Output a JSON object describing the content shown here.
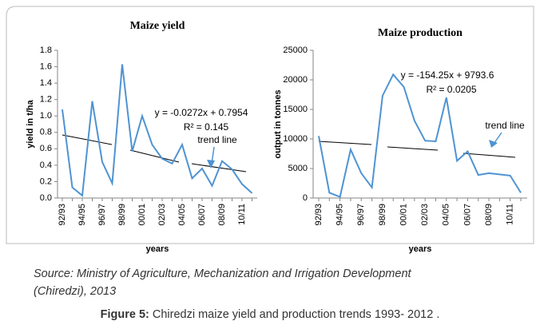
{
  "chart_data": [
    {
      "type": "line",
      "title": "Maize yield",
      "y_label": "yield in t/ha",
      "x_label": "years",
      "categories": [
        "92/93",
        null,
        "94/95",
        null,
        "96/97",
        null,
        "98/99",
        null,
        "00/01",
        null,
        "02/03",
        null,
        "04/05",
        null,
        "06/07",
        null,
        "08/09",
        null,
        "10/11",
        null
      ],
      "values": [
        1.08,
        0.13,
        0.03,
        1.18,
        0.44,
        0.18,
        1.63,
        0.57,
        1.0,
        0.65,
        0.48,
        0.42,
        0.65,
        0.24,
        0.36,
        0.15,
        0.45,
        0.35,
        0.17,
        0.06
      ],
      "color": "#4f93d2",
      "ylim": [
        0,
        1.8
      ],
      "yticks": [
        {
          "value": 0,
          "label": "0.0"
        },
        0.2,
        0.4,
        0.6,
        0.8,
        {
          "value": 1,
          "label": "1.0"
        },
        1.2,
        1.4,
        1.6,
        1.8
      ],
      "equation": "y = -0.0272x + 0.7954",
      "r_squared": "R² = 0.145",
      "annotation": "trend line"
    },
    {
      "type": "line",
      "title": "Maize production",
      "y_label": "output in tonnes",
      "x_label": "years",
      "categories": [
        "92/93",
        null,
        "94/95",
        null,
        "96/97",
        null,
        "98/99",
        null,
        "00/01",
        null,
        "02/03",
        null,
        "04/05",
        null,
        "06/07",
        null,
        "08/09",
        null,
        "10/11",
        null
      ],
      "values": [
        10500,
        900,
        200,
        8200,
        4200,
        1800,
        17300,
        20900,
        18800,
        13100,
        9700,
        9600,
        17000,
        6300,
        7900,
        3900,
        4200,
        4000,
        3800,
        900
      ],
      "color": "#4f93d2",
      "ylim": [
        0,
        25000
      ],
      "yticks": [
        0,
        5000,
        10000,
        15000,
        20000,
        25000
      ],
      "equation": "y = -154.25x + 9793.6",
      "r_squared": "R² = 0.0205",
      "annotation": "trend line"
    }
  ],
  "source": {
    "line1": "Source: Ministry of Agriculture, Mechanization and Irrigation Development",
    "line2": "(Chiredzi), 2013"
  },
  "caption": {
    "label": "Figure 5:",
    "text": "Chiredzi maize yield and production trends 1993- 2012 ."
  }
}
